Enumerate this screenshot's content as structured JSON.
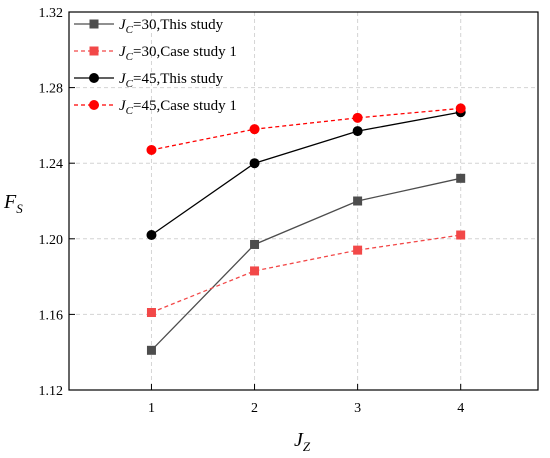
{
  "chart_data": {
    "type": "line",
    "xlabel": {
      "main": "J",
      "sub": "Z"
    },
    "ylabel": {
      "main": "F",
      "sub": "S"
    },
    "xlim": [
      0.2,
      4.75
    ],
    "ylim": [
      1.12,
      1.32
    ],
    "xticks": [
      1,
      2,
      3,
      4
    ],
    "yticks": [
      1.12,
      1.16,
      1.2,
      1.24,
      1.28,
      1.32
    ],
    "ytick_labels": [
      "1.12",
      "1.16",
      "1.20",
      "1.24",
      "1.28",
      "1.32"
    ],
    "grid": true,
    "legend_position": "top-left",
    "x": [
      1,
      2,
      3,
      4
    ],
    "series": [
      {
        "name_main": "J",
        "name_sub": "C",
        "name_rest": "=30,This study",
        "values": [
          1.141,
          1.197,
          1.22,
          1.232
        ],
        "color": "#4d4d4d",
        "marker": "square",
        "dashed": false
      },
      {
        "name_main": "J",
        "name_sub": "C",
        "name_rest": "=30,Case study 1",
        "values": [
          1.161,
          1.183,
          1.194,
          1.202
        ],
        "color": "#f24848",
        "marker": "square",
        "dashed": true
      },
      {
        "name_main": "J",
        "name_sub": "C",
        "name_rest": "=45,This study",
        "values": [
          1.202,
          1.24,
          1.257,
          1.267
        ],
        "color": "#000000",
        "marker": "circle",
        "dashed": false
      },
      {
        "name_main": "J",
        "name_sub": "C",
        "name_rest": "=45,Case study 1",
        "values": [
          1.247,
          1.258,
          1.264,
          1.269
        ],
        "color": "#ff0000",
        "marker": "circle",
        "dashed": true
      }
    ]
  }
}
